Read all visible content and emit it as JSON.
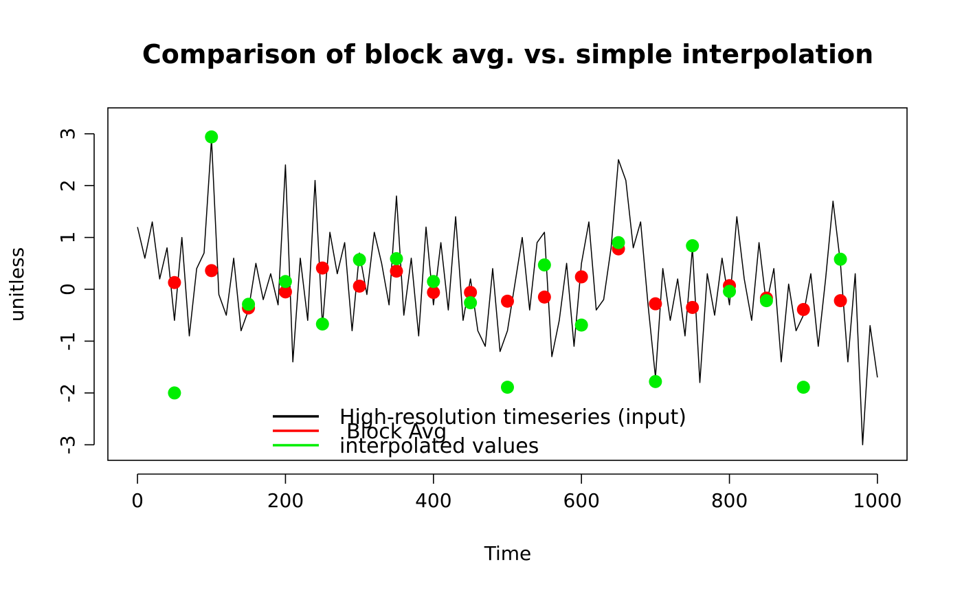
{
  "chart_data": {
    "type": "line",
    "title": "Comparison of block avg. vs. simple interpolation",
    "xlabel": "Time",
    "ylabel": "unitless",
    "xlim": [
      -40,
      1040
    ],
    "ylim": [
      -3.3,
      3.5
    ],
    "x_ticks": [
      0,
      200,
      400,
      600,
      800,
      1000
    ],
    "x_tick_labels": [
      "0",
      "200",
      "400",
      "600",
      "800",
      "1000"
    ],
    "y_ticks": [
      -3,
      -2,
      -1,
      0,
      1,
      2,
      3
    ],
    "y_tick_labels": [
      "-3",
      "-2",
      "-1",
      "0",
      "1",
      "2",
      "3"
    ],
    "grid": false,
    "legend_position": "bottom-left",
    "series": [
      {
        "name": "High-resolution timeseries (input)",
        "color": "#000000",
        "kind": "line",
        "x": [
          0,
          10,
          20,
          30,
          40,
          50,
          60,
          70,
          80,
          90,
          100,
          110,
          120,
          130,
          140,
          150,
          160,
          170,
          180,
          190,
          200,
          210,
          220,
          230,
          240,
          250,
          260,
          270,
          280,
          290,
          300,
          310,
          320,
          330,
          340,
          350,
          360,
          370,
          380,
          390,
          400,
          410,
          420,
          430,
          440,
          450,
          460,
          470,
          480,
          490,
          500,
          510,
          520,
          530,
          540,
          550,
          560,
          570,
          580,
          590,
          600,
          610,
          620,
          630,
          640,
          650,
          660,
          670,
          680,
          690,
          700,
          710,
          720,
          730,
          740,
          750,
          760,
          770,
          780,
          790,
          800,
          810,
          820,
          830,
          840,
          850,
          860,
          870,
          880,
          890,
          900,
          910,
          920,
          930,
          940,
          950,
          960,
          970,
          980,
          990,
          1000
        ],
        "values": [
          1.2,
          0.6,
          1.3,
          0.2,
          0.8,
          -0.6,
          1.0,
          -0.9,
          0.4,
          0.7,
          2.9,
          -0.1,
          -0.5,
          0.6,
          -0.8,
          -0.4,
          0.5,
          -0.2,
          0.3,
          -0.3,
          2.4,
          -1.4,
          0.6,
          -0.6,
          2.1,
          -0.7,
          1.1,
          0.3,
          0.9,
          -0.8,
          0.7,
          -0.1,
          1.1,
          0.5,
          -0.3,
          1.8,
          -0.5,
          0.6,
          -0.9,
          1.2,
          -0.3,
          0.9,
          -0.4,
          1.4,
          -0.6,
          0.2,
          -0.8,
          -1.1,
          0.4,
          -1.2,
          -0.8,
          0.1,
          1.0,
          -0.4,
          0.9,
          1.1,
          -1.3,
          -0.6,
          0.5,
          -1.1,
          0.5,
          1.3,
          -0.4,
          -0.2,
          0.8,
          2.5,
          2.1,
          0.8,
          1.3,
          -0.3,
          -1.7,
          0.4,
          -0.6,
          0.2,
          -0.9,
          0.8,
          -1.8,
          0.3,
          -0.5,
          0.6,
          -0.3,
          1.4,
          0.2,
          -0.6,
          0.9,
          -0.3,
          0.4,
          -1.4,
          0.1,
          -0.8,
          -0.5,
          0.3,
          -1.1,
          0.2,
          1.7,
          0.5,
          -1.4,
          0.3,
          -3.0,
          -0.7,
          -1.7
        ]
      },
      {
        "name": "Block Avg",
        "color": "#ff0000",
        "kind": "points",
        "x": [
          50,
          100,
          150,
          200,
          250,
          300,
          350,
          400,
          450,
          500,
          550,
          600,
          650,
          700,
          750,
          800,
          850,
          900,
          950
        ],
        "values": [
          0.13,
          0.36,
          -0.36,
          -0.05,
          0.41,
          0.06,
          0.35,
          -0.06,
          -0.06,
          -0.23,
          -0.15,
          0.24,
          0.78,
          -0.28,
          -0.35,
          0.07,
          -0.17,
          -0.39,
          -0.22
        ]
      },
      {
        "name": "interpolated values",
        "color": "#00ee00",
        "kind": "points",
        "x": [
          50,
          100,
          150,
          200,
          250,
          300,
          350,
          400,
          450,
          500,
          550,
          600,
          650,
          700,
          750,
          800,
          850,
          900,
          950
        ],
        "values": [
          -2.0,
          2.94,
          -0.29,
          0.15,
          -0.67,
          0.57,
          0.59,
          0.15,
          -0.26,
          -1.89,
          0.47,
          -0.69,
          0.9,
          -1.78,
          0.84,
          -0.04,
          -0.22,
          -1.89,
          0.58
        ]
      }
    ]
  }
}
